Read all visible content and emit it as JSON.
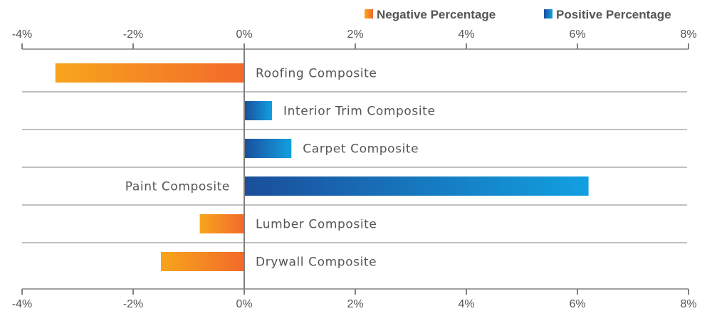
{
  "chart_data": {
    "type": "bar",
    "orientation": "horizontal",
    "categories": [
      "Roofing Composite",
      "Interior Trim Composite",
      "Carpet Composite",
      "Paint Composite",
      "Lumber Composite",
      "Drywall Composite"
    ],
    "values": [
      -3.4,
      0.5,
      0.85,
      6.2,
      -0.8,
      -1.5
    ],
    "xlim": [
      -4,
      8
    ],
    "x_ticks": [
      "-4%",
      "-2%",
      "0%",
      "2%",
      "4%",
      "6%",
      "8%"
    ],
    "tick_values": [
      -4,
      -2,
      0,
      2,
      4,
      6,
      8
    ],
    "grid": false,
    "legend_position": "top-right",
    "legend": [
      {
        "label": "Negative Percentage",
        "colors": [
          "#f7a51c",
          "#f26a2b"
        ]
      },
      {
        "label": "Positive Percentage",
        "colors": [
          "#1b4e9b",
          "#12a0e0"
        ]
      }
    ]
  }
}
